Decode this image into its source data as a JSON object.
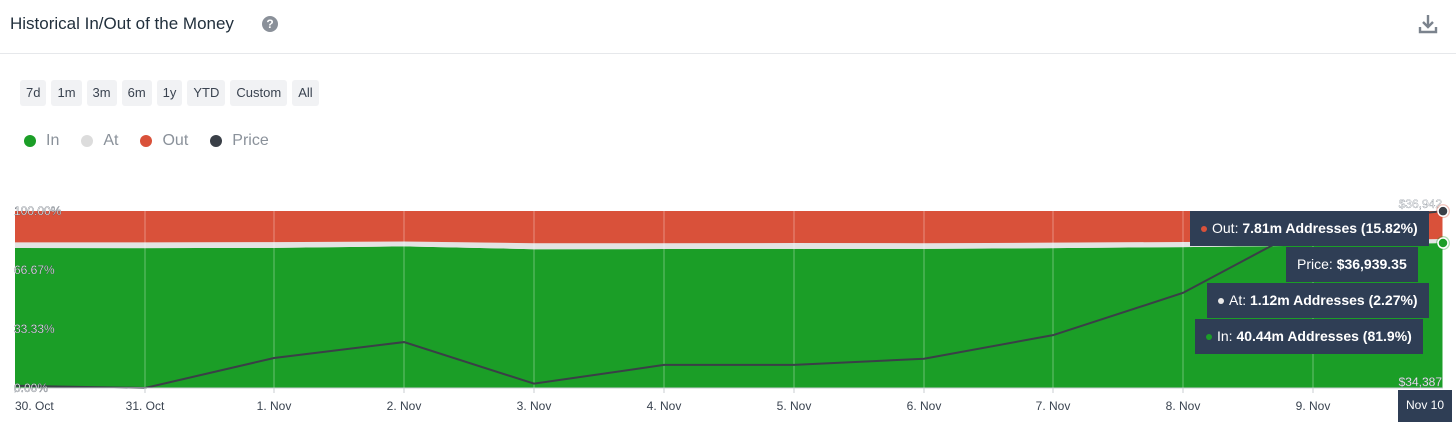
{
  "header": {
    "title": "Historical In/Out of the Money",
    "help_icon": "question-circle-icon",
    "download_icon": "download-icon"
  },
  "ranges": [
    "7d",
    "1m",
    "3m",
    "6m",
    "1y",
    "YTD",
    "Custom",
    "All"
  ],
  "legend": [
    {
      "label": "In",
      "color": "#1b9e27"
    },
    {
      "label": "At",
      "color": "#dcdcdc"
    },
    {
      "label": "Out",
      "color": "#d9513a"
    },
    {
      "label": "Price",
      "color": "#3a3f47"
    }
  ],
  "chart_data": {
    "type": "area",
    "stacked": true,
    "x": [
      "30. Oct",
      "31. Oct",
      "1. Nov",
      "2. Nov",
      "3. Nov",
      "4. Nov",
      "5. Nov",
      "6. Nov",
      "7. Nov",
      "8. Nov",
      "9. Nov",
      "Nov 10"
    ],
    "x_tick_labels": [
      "30. Oct",
      "31. Oct",
      "1. Nov",
      "2. Nov",
      "3. Nov",
      "4. Nov",
      "5. Nov",
      "6. Nov",
      "7. Nov",
      "8. Nov",
      "9. Nov"
    ],
    "y_tick_labels": [
      "0.00%",
      "33.33%",
      "66.67%",
      "100.00%"
    ],
    "ylim": [
      0,
      100
    ],
    "series": [
      {
        "name": "In",
        "values": [
          79.1,
          79.0,
          79.2,
          80.0,
          78.4,
          78.5,
          78.6,
          78.6,
          79.0,
          79.6,
          80.4,
          81.9
        ]
      },
      {
        "name": "At",
        "values": [
          3.2,
          3.3,
          3.2,
          2.8,
          3.4,
          3.3,
          3.3,
          3.2,
          3.1,
          2.9,
          2.6,
          2.27
        ]
      },
      {
        "name": "Out",
        "values": [
          17.7,
          17.7,
          17.6,
          17.2,
          18.2,
          18.2,
          18.1,
          18.2,
          17.9,
          17.5,
          17.0,
          15.82
        ]
      }
    ],
    "price": {
      "name": "Price",
      "values": [
        34420,
        34387,
        34820,
        35050,
        34450,
        34720,
        34720,
        34810,
        35150,
        35760,
        36760,
        36939.35
      ],
      "ylim": [
        34387,
        36942
      ],
      "right_tick_labels": [
        "$34,387",
        "$36,942"
      ]
    },
    "tooltip": {
      "date": "Nov 10",
      "out": {
        "label": "Out:",
        "value": "7.81m Addresses (15.82%)"
      },
      "price": {
        "label": "Price:",
        "value": "$36,939.35"
      },
      "at": {
        "label": "At:",
        "value": "1.12m Addresses (2.27%)"
      },
      "in": {
        "label": "In:",
        "value": "40.44m Addresses (81.9%)"
      }
    }
  }
}
